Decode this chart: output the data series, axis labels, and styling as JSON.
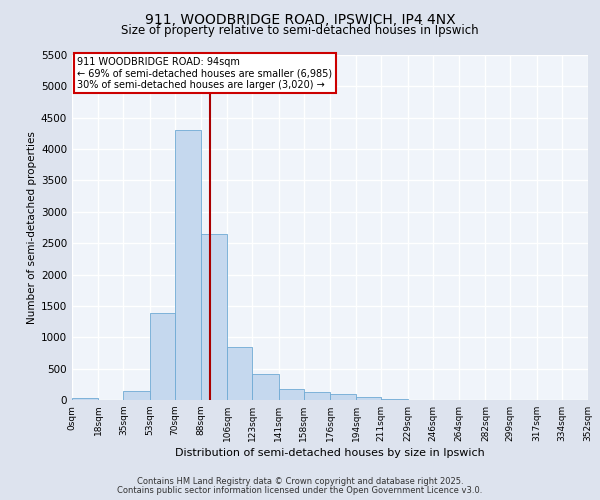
{
  "title_line1": "911, WOODBRIDGE ROAD, IPSWICH, IP4 4NX",
  "title_line2": "Size of property relative to semi-detached houses in Ipswich",
  "xlabel": "Distribution of semi-detached houses by size in Ipswich",
  "ylabel": "Number of semi-detached properties",
  "bin_labels": [
    "0sqm",
    "18sqm",
    "35sqm",
    "53sqm",
    "70sqm",
    "88sqm",
    "106sqm",
    "123sqm",
    "141sqm",
    "158sqm",
    "176sqm",
    "194sqm",
    "211sqm",
    "229sqm",
    "246sqm",
    "264sqm",
    "282sqm",
    "299sqm",
    "317sqm",
    "334sqm",
    "352sqm"
  ],
  "bin_edges": [
    0,
    18,
    35,
    53,
    70,
    88,
    106,
    123,
    141,
    158,
    176,
    194,
    211,
    229,
    246,
    264,
    282,
    299,
    317,
    334,
    352
  ],
  "bar_values": [
    30,
    0,
    150,
    1380,
    4300,
    2650,
    850,
    420,
    170,
    120,
    90,
    50,
    15,
    5,
    3,
    2,
    1,
    0,
    0,
    0
  ],
  "bar_color": "#c5d8ee",
  "bar_edgecolor": "#6faad4",
  "property_size": 94,
  "vline_color": "#aa0000",
  "annotation_text": "911 WOODBRIDGE ROAD: 94sqm\n← 69% of semi-detached houses are smaller (6,985)\n30% of semi-detached houses are larger (3,020) →",
  "annotation_box_color": "#cc0000",
  "ylim": [
    0,
    5500
  ],
  "yticks": [
    0,
    500,
    1000,
    1500,
    2000,
    2500,
    3000,
    3500,
    4000,
    4500,
    5000,
    5500
  ],
  "background_color": "#dde3ee",
  "plot_background": "#f0f4fa",
  "grid_color": "#ffffff",
  "footer_line1": "Contains HM Land Registry data © Crown copyright and database right 2025.",
  "footer_line2": "Contains public sector information licensed under the Open Government Licence v3.0."
}
